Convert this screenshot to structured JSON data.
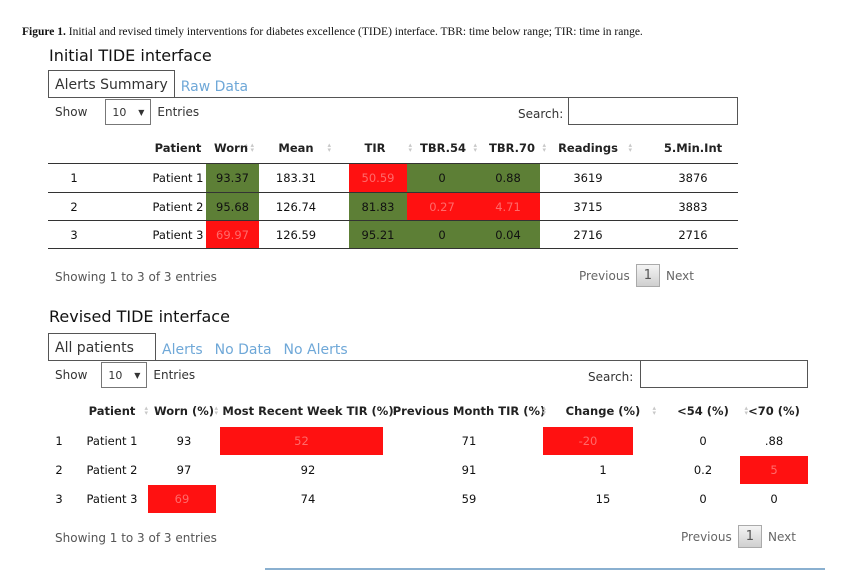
{
  "caption": {
    "label": "Figure 1.",
    "text": "Initial and revised timely interventions for diabetes excellence (TIDE) interface. TBR: time below range; TIR: time in range."
  },
  "colors": {
    "green": "#5d7f36",
    "red": "#ff1111",
    "tab_link": "#6fa8d8"
  },
  "initial": {
    "title": "Initial TIDE interface",
    "tabs": [
      "Alerts Summary",
      "Raw Data"
    ],
    "show_label": "Show",
    "entries_value": "10",
    "entries_label": "Entries",
    "search_label": "Search:",
    "columns": [
      "",
      "Patient",
      "Worn",
      "Mean",
      "TIR",
      "TBR.54",
      "TBR.70",
      "Readings",
      "5.Min.Int"
    ],
    "rows": [
      {
        "cells": [
          "1",
          "Patient 1",
          "93.37",
          "183.31",
          "50.59",
          "0",
          "0.88",
          "3619",
          "3876"
        ],
        "status": [
          "",
          "",
          "green",
          "",
          "red",
          "green",
          "green",
          "",
          ""
        ]
      },
      {
        "cells": [
          "2",
          "Patient 2",
          "95.68",
          "126.74",
          "81.83",
          "0.27",
          "4.71",
          "3715",
          "3883"
        ],
        "status": [
          "",
          "",
          "green",
          "",
          "green",
          "red",
          "red",
          "",
          ""
        ]
      },
      {
        "cells": [
          "3",
          "Patient 3",
          "69.97",
          "126.59",
          "95.21",
          "0",
          "0.04",
          "2716",
          "2716"
        ],
        "status": [
          "",
          "",
          "red",
          "",
          "green",
          "green",
          "green",
          "",
          ""
        ]
      }
    ],
    "footer": "Showing 1 to 3 of 3 entries",
    "pager": {
      "previous": "Previous",
      "page": "1",
      "next": "Next"
    }
  },
  "revised": {
    "title": "Revised TIDE interface",
    "tabs": [
      "All patients",
      "Alerts",
      "No Data",
      "No Alerts"
    ],
    "show_label": "Show",
    "entries_value": "10",
    "entries_label": "Entries",
    "search_label": "Search:",
    "columns": [
      "",
      "Patient",
      "Worn (%)",
      "Most Recent Week TIR (%)",
      "Previous Month TIR (%)",
      "Change (%)",
      "<54 (%)",
      "<70 (%)"
    ],
    "rows": [
      {
        "cells": [
          "1",
          "Patient 1",
          "93",
          "52",
          "71",
          "-20",
          "0",
          ".88"
        ],
        "status": [
          "",
          "",
          "",
          "red",
          "",
          "red",
          "",
          ""
        ]
      },
      {
        "cells": [
          "2",
          "Patient 2",
          "97",
          "92",
          "91",
          "1",
          "0.2",
          "5"
        ],
        "status": [
          "",
          "",
          "",
          "",
          "",
          "",
          "",
          "red"
        ]
      },
      {
        "cells": [
          "3",
          "Patient 3",
          "69",
          "74",
          "59",
          "15",
          "0",
          "0"
        ],
        "status": [
          "",
          "",
          "red",
          "",
          "",
          "",
          "",
          ""
        ]
      }
    ],
    "footer": "Showing 1 to 3 of 3 entries",
    "pager": {
      "previous": "Previous",
      "page": "1",
      "next": "Next"
    }
  }
}
